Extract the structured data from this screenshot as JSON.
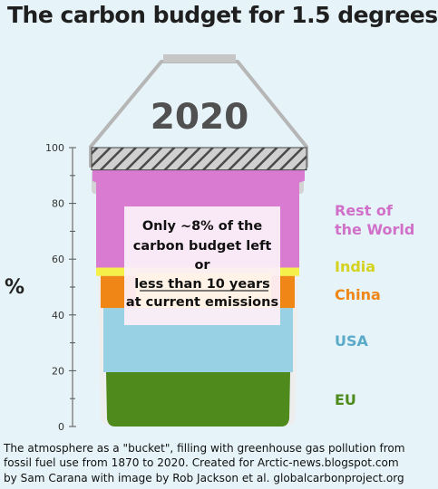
{
  "chart_data": {
    "type": "bar",
    "stacked": true,
    "title": "The carbon budget for 1.5 degrees",
    "year_label": "2020",
    "ylabel": "%",
    "ylim": [
      0,
      100
    ],
    "yticks": [
      0,
      20,
      40,
      60,
      80,
      100
    ],
    "grid": false,
    "legend": "right",
    "series": [
      {
        "name": "EU",
        "from": 0,
        "to": 19.5,
        "color": "#4e8a1c",
        "label_color": "#4e8a1c"
      },
      {
        "name": "USA",
        "from": 19.5,
        "to": 42.5,
        "color": "#97d1e3",
        "label_color": "#5aaac8"
      },
      {
        "name": "China",
        "from": 42.5,
        "to": 54,
        "color": "#f08616",
        "label_color": "#f08616"
      },
      {
        "name": "India",
        "from": 54,
        "to": 57,
        "color": "#f6f04a",
        "label_color": "#d4d21c"
      },
      {
        "name": "Rest of the World",
        "from": 57,
        "to": 92,
        "color": "#d87bd1",
        "label_color": "#d070c8"
      }
    ],
    "remaining": {
      "from": 92,
      "to": 100,
      "pattern": "hatched"
    },
    "annotation": {
      "lines": [
        "Only ~8% of the",
        "carbon budget left",
        "or",
        "less than 10 years",
        "at current emissions"
      ]
    }
  },
  "caption": {
    "line1": "The atmosphere as a \"bucket\", filling with greenhouse gas pollution from",
    "line2": "fossil fuel use from 1870 to 2020. Created for Arctic-news.blogspot.com",
    "line3": "by Sam Carana with image by Rob Jackson et al. globalcarbonproject.org"
  },
  "colors": {
    "background": "#e6f3f8",
    "bucket_rim": "#d3d3d3",
    "handle": "#b6b6b6",
    "axis": "#555555",
    "title": "#1f1f1f"
  }
}
